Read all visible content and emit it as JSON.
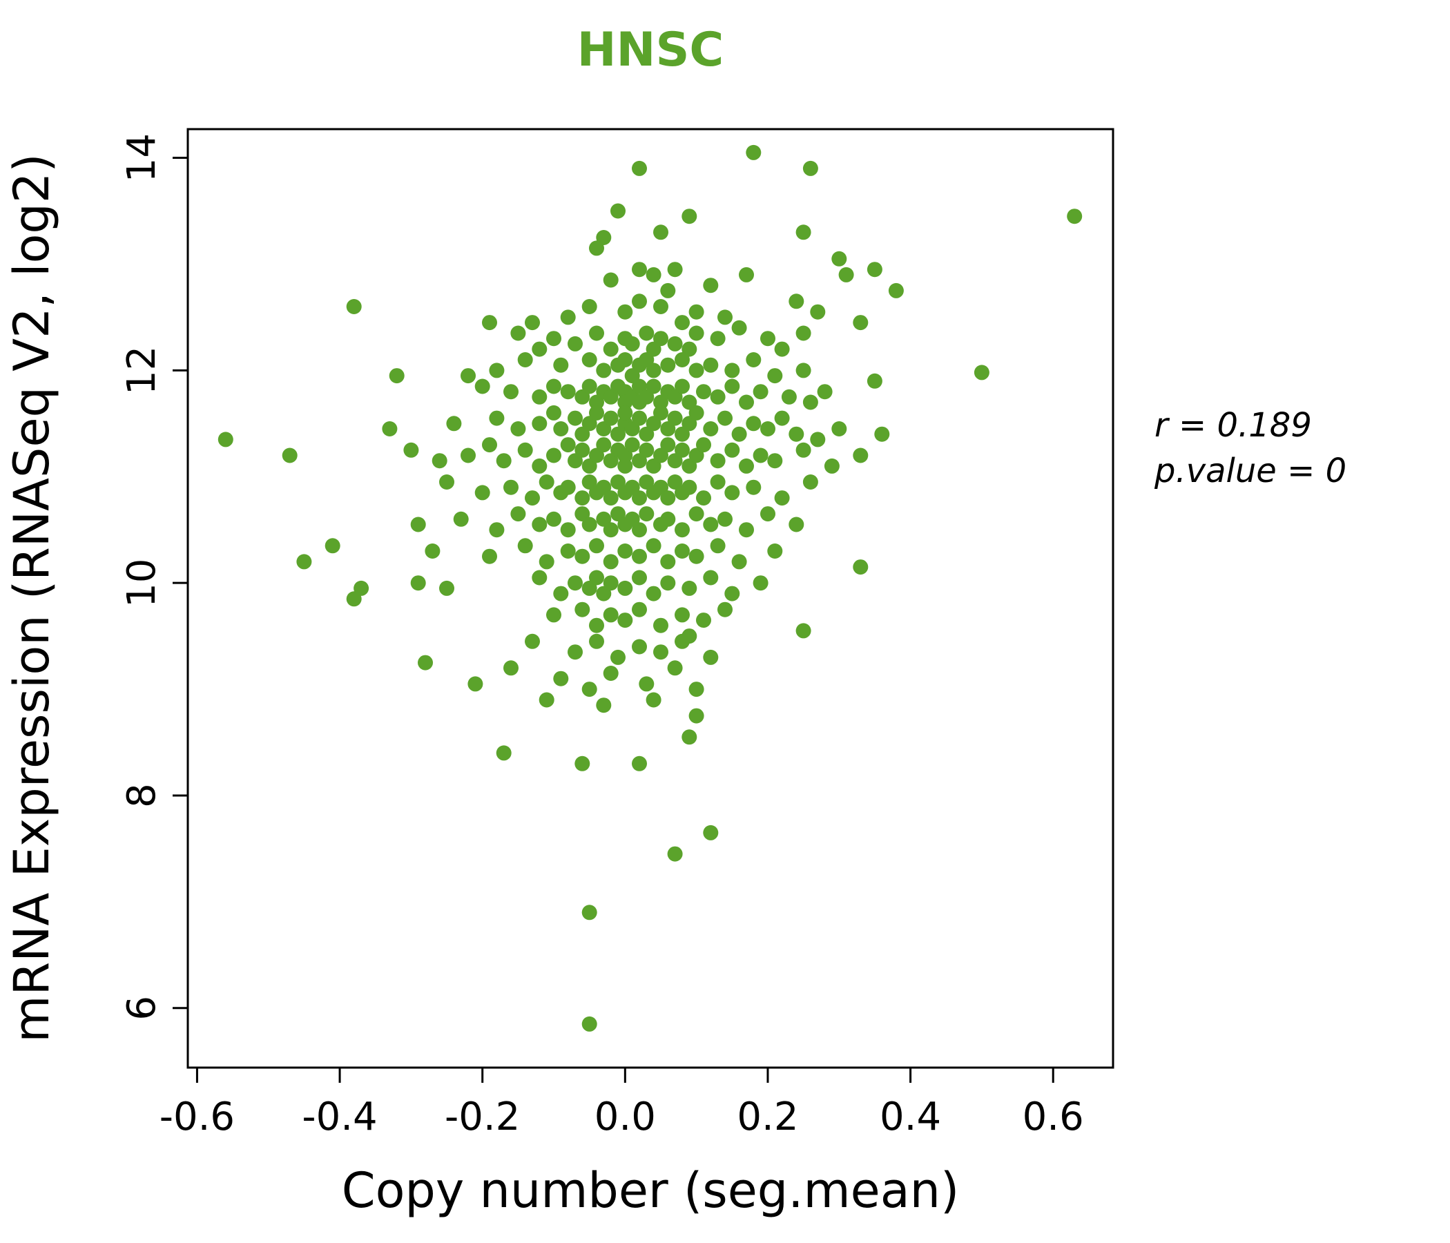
{
  "chart_data": {
    "type": "scatter",
    "title": "HNSC",
    "xlabel": "Copy number (seg.mean)",
    "ylabel": "mRNA Expression (RNASeq V2, log2)",
    "xlim": [
      -0.613,
      0.684
    ],
    "ylim": [
      5.44,
      14.27
    ],
    "xticks": [
      -0.6,
      -0.4,
      -0.2,
      0.0,
      0.2,
      0.4,
      0.6
    ],
    "yticks": [
      6,
      8,
      10,
      12,
      14
    ],
    "grid": false,
    "legend": "none",
    "point_color": "#5ba32b",
    "title_color": "#5ba32b",
    "annotation": {
      "r": "r = 0.189",
      "p": "p.value = 0"
    },
    "r_value": 0.189,
    "p_value": 0,
    "points": [
      [
        0.18,
        14.05
      ],
      [
        0.02,
        13.9
      ],
      [
        0.26,
        13.9
      ],
      [
        -0.01,
        13.5
      ],
      [
        0.63,
        13.45
      ],
      [
        0.09,
        13.45
      ],
      [
        -0.03,
        13.25
      ],
      [
        0.05,
        13.3
      ],
      [
        0.25,
        13.3
      ],
      [
        -0.04,
        13.15
      ],
      [
        0.3,
        13.05
      ],
      [
        0.02,
        12.95
      ],
      [
        0.04,
        12.9
      ],
      [
        0.07,
        12.95
      ],
      [
        0.17,
        12.9
      ],
      [
        0.35,
        12.95
      ],
      [
        0.31,
        12.9
      ],
      [
        -0.02,
        12.85
      ],
      [
        0.38,
        12.75
      ],
      [
        0.06,
        12.75
      ],
      [
        0.12,
        12.8
      ],
      [
        -0.38,
        12.6
      ],
      [
        -0.05,
        12.6
      ],
      [
        0.0,
        12.55
      ],
      [
        0.02,
        12.65
      ],
      [
        0.05,
        12.6
      ],
      [
        0.1,
        12.55
      ],
      [
        0.27,
        12.55
      ],
      [
        0.24,
        12.65
      ],
      [
        -0.08,
        12.5
      ],
      [
        0.08,
        12.45
      ],
      [
        -0.19,
        12.45
      ],
      [
        -0.13,
        12.45
      ],
      [
        0.14,
        12.5
      ],
      [
        -0.15,
        12.35
      ],
      [
        -0.1,
        12.3
      ],
      [
        -0.04,
        12.35
      ],
      [
        0.0,
        12.3
      ],
      [
        0.01,
        12.25
      ],
      [
        0.03,
        12.35
      ],
      [
        0.05,
        12.3
      ],
      [
        0.07,
        12.25
      ],
      [
        0.1,
        12.35
      ],
      [
        0.13,
        12.3
      ],
      [
        0.16,
        12.4
      ],
      [
        0.2,
        12.3
      ],
      [
        0.22,
        12.2
      ],
      [
        -0.02,
        12.2
      ],
      [
        0.04,
        12.2
      ],
      [
        -0.07,
        12.25
      ],
      [
        0.25,
        12.35
      ],
      [
        -0.12,
        12.2
      ],
      [
        0.09,
        12.2
      ],
      [
        0.33,
        12.45
      ],
      [
        -0.32,
        11.95
      ],
      [
        -0.18,
        12.0
      ],
      [
        -0.14,
        12.1
      ],
      [
        -0.09,
        12.05
      ],
      [
        -0.05,
        12.1
      ],
      [
        -0.03,
        12.0
      ],
      [
        -0.01,
        12.05
      ],
      [
        0.0,
        12.1
      ],
      [
        0.01,
        11.95
      ],
      [
        0.02,
        12.05
      ],
      [
        0.03,
        12.1
      ],
      [
        0.04,
        12.0
      ],
      [
        0.06,
        12.05
      ],
      [
        0.08,
        12.1
      ],
      [
        0.1,
        12.0
      ],
      [
        0.12,
        12.05
      ],
      [
        0.15,
        12.0
      ],
      [
        0.18,
        12.1
      ],
      [
        0.25,
        12.0
      ],
      [
        0.5,
        11.98
      ],
      [
        0.21,
        11.95
      ],
      [
        -0.22,
        11.95
      ],
      [
        0.35,
        11.9
      ],
      [
        -0.2,
        11.85
      ],
      [
        -0.16,
        11.8
      ],
      [
        -0.12,
        11.75
      ],
      [
        -0.1,
        11.85
      ],
      [
        -0.08,
        11.8
      ],
      [
        -0.06,
        11.75
      ],
      [
        -0.05,
        11.85
      ],
      [
        -0.04,
        11.7
      ],
      [
        -0.03,
        11.8
      ],
      [
        -0.02,
        11.75
      ],
      [
        -0.01,
        11.85
      ],
      [
        0.0,
        11.8
      ],
      [
        0.0,
        11.7
      ],
      [
        0.01,
        11.75
      ],
      [
        0.02,
        11.85
      ],
      [
        0.02,
        11.7
      ],
      [
        0.03,
        11.75
      ],
      [
        0.04,
        11.85
      ],
      [
        0.05,
        11.7
      ],
      [
        0.06,
        11.8
      ],
      [
        0.07,
        11.75
      ],
      [
        0.08,
        11.85
      ],
      [
        0.09,
        11.7
      ],
      [
        0.11,
        11.8
      ],
      [
        0.13,
        11.75
      ],
      [
        0.15,
        11.85
      ],
      [
        0.17,
        11.7
      ],
      [
        0.19,
        11.8
      ],
      [
        0.23,
        11.75
      ],
      [
        0.28,
        11.8
      ],
      [
        0.26,
        11.7
      ],
      [
        -0.33,
        11.45
      ],
      [
        -0.24,
        11.5
      ],
      [
        -0.18,
        11.55
      ],
      [
        -0.15,
        11.45
      ],
      [
        -0.12,
        11.5
      ],
      [
        -0.1,
        11.6
      ],
      [
        -0.09,
        11.45
      ],
      [
        -0.07,
        11.55
      ],
      [
        -0.06,
        11.4
      ],
      [
        -0.05,
        11.5
      ],
      [
        -0.04,
        11.6
      ],
      [
        -0.03,
        11.45
      ],
      [
        -0.02,
        11.55
      ],
      [
        -0.01,
        11.4
      ],
      [
        0.0,
        11.5
      ],
      [
        0.0,
        11.6
      ],
      [
        0.01,
        11.45
      ],
      [
        0.02,
        11.55
      ],
      [
        0.03,
        11.4
      ],
      [
        0.04,
        11.5
      ],
      [
        0.05,
        11.6
      ],
      [
        0.06,
        11.45
      ],
      [
        0.07,
        11.55
      ],
      [
        0.08,
        11.4
      ],
      [
        0.09,
        11.5
      ],
      [
        0.1,
        11.6
      ],
      [
        0.12,
        11.45
      ],
      [
        0.14,
        11.55
      ],
      [
        0.16,
        11.4
      ],
      [
        0.18,
        11.5
      ],
      [
        0.2,
        11.45
      ],
      [
        0.22,
        11.55
      ],
      [
        0.24,
        11.4
      ],
      [
        0.36,
        11.4
      ],
      [
        0.3,
        11.45
      ],
      [
        0.27,
        11.35
      ],
      [
        -0.56,
        11.35
      ],
      [
        -0.47,
        11.2
      ],
      [
        -0.3,
        11.25
      ],
      [
        -0.26,
        11.15
      ],
      [
        -0.22,
        11.2
      ],
      [
        -0.19,
        11.3
      ],
      [
        -0.17,
        11.15
      ],
      [
        -0.14,
        11.25
      ],
      [
        -0.12,
        11.1
      ],
      [
        -0.1,
        11.2
      ],
      [
        -0.08,
        11.3
      ],
      [
        -0.07,
        11.15
      ],
      [
        -0.06,
        11.25
      ],
      [
        -0.05,
        11.1
      ],
      [
        -0.04,
        11.2
      ],
      [
        -0.03,
        11.3
      ],
      [
        -0.02,
        11.15
      ],
      [
        -0.01,
        11.25
      ],
      [
        0.0,
        11.1
      ],
      [
        0.0,
        11.2
      ],
      [
        0.01,
        11.3
      ],
      [
        0.02,
        11.15
      ],
      [
        0.03,
        11.25
      ],
      [
        0.04,
        11.1
      ],
      [
        0.05,
        11.2
      ],
      [
        0.06,
        11.3
      ],
      [
        0.07,
        11.15
      ],
      [
        0.08,
        11.25
      ],
      [
        0.09,
        11.1
      ],
      [
        0.1,
        11.2
      ],
      [
        0.11,
        11.3
      ],
      [
        0.13,
        11.15
      ],
      [
        0.15,
        11.25
      ],
      [
        0.17,
        11.1
      ],
      [
        0.19,
        11.2
      ],
      [
        0.21,
        11.15
      ],
      [
        0.25,
        11.25
      ],
      [
        0.29,
        11.1
      ],
      [
        0.33,
        11.2
      ],
      [
        -0.25,
        10.95
      ],
      [
        -0.2,
        10.85
      ],
      [
        -0.16,
        10.9
      ],
      [
        -0.13,
        10.8
      ],
      [
        -0.11,
        10.95
      ],
      [
        -0.09,
        10.85
      ],
      [
        -0.08,
        10.9
      ],
      [
        -0.06,
        10.8
      ],
      [
        -0.05,
        10.95
      ],
      [
        -0.04,
        10.85
      ],
      [
        -0.03,
        10.9
      ],
      [
        -0.02,
        10.8
      ],
      [
        -0.01,
        10.95
      ],
      [
        0.0,
        10.85
      ],
      [
        0.01,
        10.9
      ],
      [
        0.02,
        10.8
      ],
      [
        0.03,
        10.95
      ],
      [
        0.04,
        10.85
      ],
      [
        0.05,
        10.9
      ],
      [
        0.06,
        10.8
      ],
      [
        0.07,
        10.95
      ],
      [
        0.08,
        10.85
      ],
      [
        0.09,
        10.9
      ],
      [
        0.11,
        10.8
      ],
      [
        0.13,
        10.95
      ],
      [
        0.15,
        10.85
      ],
      [
        0.18,
        10.9
      ],
      [
        0.22,
        10.8
      ],
      [
        0.26,
        10.95
      ],
      [
        -0.29,
        10.55
      ],
      [
        -0.23,
        10.6
      ],
      [
        -0.18,
        10.5
      ],
      [
        -0.15,
        10.65
      ],
      [
        -0.12,
        10.55
      ],
      [
        -0.1,
        10.6
      ],
      [
        -0.08,
        10.5
      ],
      [
        -0.06,
        10.65
      ],
      [
        -0.05,
        10.55
      ],
      [
        -0.03,
        10.6
      ],
      [
        -0.02,
        10.5
      ],
      [
        -0.01,
        10.65
      ],
      [
        0.0,
        10.55
      ],
      [
        0.01,
        10.6
      ],
      [
        0.02,
        10.5
      ],
      [
        0.03,
        10.65
      ],
      [
        0.05,
        10.55
      ],
      [
        0.06,
        10.6
      ],
      [
        0.08,
        10.5
      ],
      [
        0.1,
        10.65
      ],
      [
        0.12,
        10.55
      ],
      [
        0.14,
        10.6
      ],
      [
        0.17,
        10.5
      ],
      [
        0.2,
        10.65
      ],
      [
        0.24,
        10.55
      ],
      [
        -0.45,
        10.2
      ],
      [
        -0.41,
        10.35
      ],
      [
        -0.27,
        10.3
      ],
      [
        -0.19,
        10.25
      ],
      [
        -0.14,
        10.35
      ],
      [
        -0.11,
        10.2
      ],
      [
        -0.08,
        10.3
      ],
      [
        -0.06,
        10.25
      ],
      [
        -0.04,
        10.35
      ],
      [
        -0.02,
        10.2
      ],
      [
        0.0,
        10.3
      ],
      [
        0.02,
        10.25
      ],
      [
        0.04,
        10.35
      ],
      [
        0.06,
        10.2
      ],
      [
        0.08,
        10.3
      ],
      [
        0.1,
        10.25
      ],
      [
        0.13,
        10.35
      ],
      [
        0.16,
        10.2
      ],
      [
        0.33,
        10.15
      ],
      [
        0.21,
        10.3
      ],
      [
        -0.38,
        9.85
      ],
      [
        -0.37,
        9.95
      ],
      [
        -0.29,
        10.0
      ],
      [
        -0.25,
        9.95
      ],
      [
        -0.12,
        10.05
      ],
      [
        -0.09,
        9.9
      ],
      [
        -0.07,
        10.0
      ],
      [
        -0.05,
        9.95
      ],
      [
        -0.04,
        10.05
      ],
      [
        -0.03,
        9.9
      ],
      [
        -0.02,
        10.0
      ],
      [
        0.0,
        9.95
      ],
      [
        0.02,
        10.05
      ],
      [
        0.04,
        9.9
      ],
      [
        0.06,
        10.0
      ],
      [
        0.09,
        9.95
      ],
      [
        0.12,
        10.05
      ],
      [
        0.15,
        9.9
      ],
      [
        0.19,
        10.0
      ],
      [
        -0.1,
        9.7
      ],
      [
        -0.06,
        9.75
      ],
      [
        -0.04,
        9.6
      ],
      [
        -0.02,
        9.7
      ],
      [
        0.0,
        9.65
      ],
      [
        0.02,
        9.75
      ],
      [
        0.05,
        9.6
      ],
      [
        0.08,
        9.7
      ],
      [
        0.11,
        9.65
      ],
      [
        0.14,
        9.75
      ],
      [
        0.25,
        9.55
      ],
      [
        -0.28,
        9.25
      ],
      [
        -0.13,
        9.45
      ],
      [
        -0.07,
        9.35
      ],
      [
        -0.04,
        9.45
      ],
      [
        -0.01,
        9.3
      ],
      [
        0.02,
        9.4
      ],
      [
        0.05,
        9.35
      ],
      [
        0.08,
        9.45
      ],
      [
        0.12,
        9.3
      ],
      [
        0.09,
        9.5
      ],
      [
        -0.21,
        9.05
      ],
      [
        -0.16,
        9.2
      ],
      [
        -0.09,
        9.1
      ],
      [
        -0.05,
        9.0
      ],
      [
        -0.02,
        9.15
      ],
      [
        0.03,
        9.05
      ],
      [
        0.07,
        9.2
      ],
      [
        0.1,
        9.0
      ],
      [
        -0.11,
        8.9
      ],
      [
        -0.03,
        8.85
      ],
      [
        0.04,
        8.9
      ],
      [
        0.1,
        8.75
      ],
      [
        -0.17,
        8.4
      ],
      [
        -0.06,
        8.3
      ],
      [
        0.02,
        8.3
      ],
      [
        0.09,
        8.55
      ],
      [
        0.12,
        7.65
      ],
      [
        0.07,
        7.45
      ],
      [
        -0.05,
        6.9
      ],
      [
        -0.05,
        5.85
      ]
    ]
  }
}
